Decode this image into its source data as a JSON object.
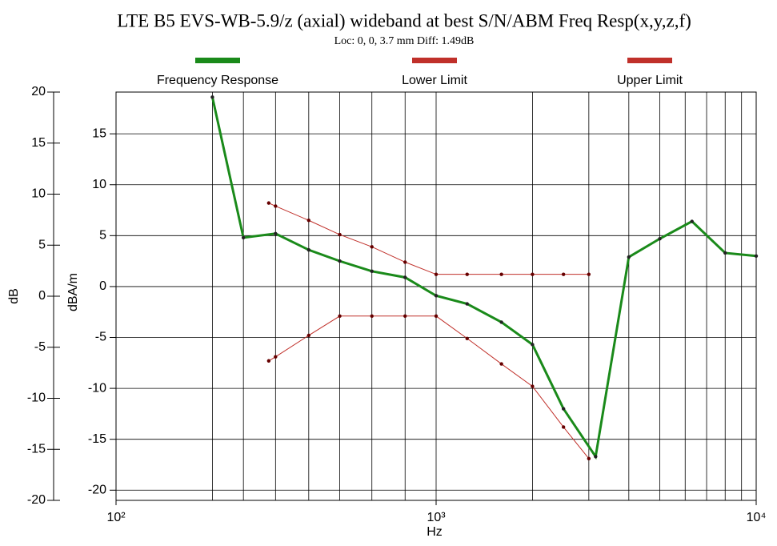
{
  "chart_data": {
    "type": "line",
    "title": "LTE B5 EVS-WB-5.9/z (axial) wideband at best S/N/ABM Freq Resp(x,y,z,f)",
    "subtitle": "Loc: 0, 0, 3.7 mm Diff: 1.49dB",
    "xlabel": "Hz",
    "ylabel": "dB",
    "y2label": "dBA/m",
    "xscale": "log",
    "xlim": [
      100,
      10000
    ],
    "xticks": [
      {
        "value": 100,
        "label": "10²"
      },
      {
        "value": 1000,
        "label": "10³"
      },
      {
        "value": 10000,
        "label": "10⁴"
      }
    ],
    "xgrid": [
      200,
      250,
      315,
      400,
      500,
      630,
      800,
      1000,
      2000,
      3000,
      4000,
      5000,
      6000,
      7000,
      8000,
      9000
    ],
    "ylim": [
      -20,
      20
    ],
    "yticks": [
      -20,
      -15,
      -10,
      -5,
      0,
      5,
      10,
      15,
      20
    ],
    "y2lim": [
      -21.0,
      19.1
    ],
    "y2ticks": [
      -20,
      -15,
      -10,
      -5,
      0,
      5,
      10,
      15
    ],
    "grid": true,
    "legend": "top",
    "series": [
      {
        "name": "Frequency Response",
        "color": "#1a8a1a",
        "axis": "y2",
        "x": [
          200,
          250,
          315,
          400,
          500,
          630,
          800,
          1000,
          1250,
          1600,
          2000,
          2500,
          3150,
          4000,
          5000,
          6300,
          8000,
          10000
        ],
        "values": [
          18.6,
          4.8,
          5.2,
          3.6,
          2.5,
          1.5,
          0.9,
          -0.9,
          -1.7,
          -3.5,
          -5.7,
          -12.0,
          -16.7,
          2.9,
          4.7,
          6.4,
          3.3,
          3.0
        ]
      },
      {
        "name": "Lower Limit",
        "color": "#c0302a",
        "axis": "y2",
        "x": [
          300,
          315,
          400,
          500,
          630,
          800,
          1000,
          1250,
          1600,
          2000,
          2500,
          3000
        ],
        "values": [
          -7.3,
          -6.9,
          -4.8,
          -2.9,
          -2.9,
          -2.9,
          -2.9,
          -5.1,
          -7.6,
          -9.8,
          -13.8,
          -16.9
        ]
      },
      {
        "name": "Upper Limit",
        "color": "#c0302a",
        "axis": "y2",
        "x": [
          300,
          315,
          400,
          500,
          630,
          800,
          1000,
          1250,
          1600,
          2000,
          2500,
          3000
        ],
        "values": [
          8.2,
          7.9,
          6.5,
          5.1,
          3.9,
          2.4,
          1.2,
          1.2,
          1.2,
          1.2,
          1.2,
          1.2
        ]
      }
    ]
  }
}
